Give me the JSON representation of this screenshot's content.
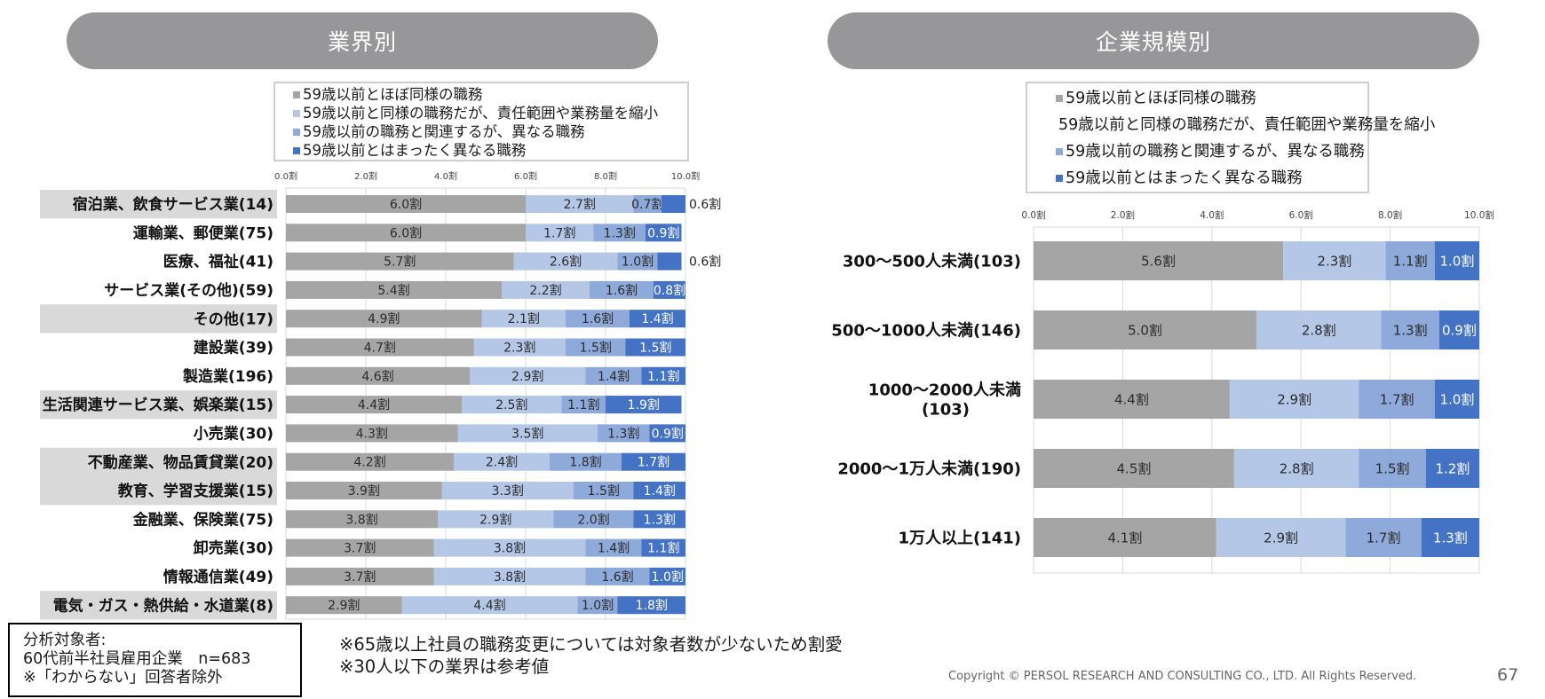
{
  "left_panel": {
    "title": "業界別"
  },
  "right_panel": {
    "title": "企業規模別"
  },
  "legend": [
    {
      "label": "59歳以前とほぼ同様の職務",
      "color": "#a5a5a5"
    },
    {
      "label": "59歳以前と同様の職務だが、責任範囲や業務量を縮小",
      "color": "#b4c7e7"
    },
    {
      "label": "59歳以前の職務と関連するが、異なる職務",
      "color": "#8eaadb"
    },
    {
      "label": "59歳以前とはまったく異なる職務",
      "color": "#4472c4"
    }
  ],
  "chart_data": [
    {
      "type": "bar",
      "orientation": "horizontal-stacked",
      "title": "業界別",
      "xlim": [
        0,
        10
      ],
      "xticks": [
        "0.0割",
        "2.0割",
        "4.0割",
        "6.0割",
        "8.0割",
        "10.0割"
      ],
      "unit": "割",
      "grid": true,
      "legend_position": "top",
      "categories": [
        "宿泊業、飲食サービス業(14)",
        "運輸業、郵便業(75)",
        "医療、福祉(41)",
        "サービス業(その他)(59)",
        "その他(17)",
        "建設業(39)",
        "製造業(196)",
        "生活関連サービス業、娯楽業(15)",
        "小売業(30)",
        "不動産業、物品賃貸業(20)",
        "教育、学習支援業(15)",
        "金融業、保険業(75)",
        "卸売業(30)",
        "情報通信業(49)",
        "電気・ガス・熱供給・水道業(8)"
      ],
      "highlighted": [
        true,
        false,
        false,
        false,
        true,
        false,
        false,
        true,
        false,
        true,
        true,
        false,
        false,
        false,
        true
      ],
      "series": [
        {
          "name": "59歳以前とほぼ同様の職務",
          "values": [
            6.0,
            6.0,
            5.7,
            5.4,
            4.9,
            4.7,
            4.6,
            4.4,
            4.3,
            4.2,
            3.9,
            3.8,
            3.7,
            3.7,
            2.9
          ]
        },
        {
          "name": "59歳以前と同様の職務だが、責任範囲や業務量を縮小",
          "values": [
            2.7,
            1.7,
            2.6,
            2.2,
            2.1,
            2.3,
            2.9,
            2.5,
            3.5,
            2.4,
            3.3,
            2.9,
            3.8,
            3.8,
            4.4
          ]
        },
        {
          "name": "59歳以前の職務と関連するが、異なる職務",
          "values": [
            0.7,
            1.3,
            1.0,
            1.6,
            1.6,
            1.5,
            1.4,
            1.1,
            1.3,
            1.8,
            1.5,
            2.0,
            1.4,
            1.6,
            1.0
          ]
        },
        {
          "name": "59歳以前とはまったく異なる職務",
          "values": [
            0.6,
            0.9,
            0.6,
            0.8,
            1.4,
            1.5,
            1.1,
            1.9,
            0.9,
            1.7,
            1.4,
            1.3,
            1.1,
            1.0,
            1.8
          ]
        }
      ],
      "outside_labels": [
        [
          0,
          3
        ],
        [
          2,
          3
        ]
      ]
    },
    {
      "type": "bar",
      "orientation": "horizontal-stacked",
      "title": "企業規模別",
      "xlim": [
        0,
        10
      ],
      "xticks": [
        "0.0割",
        "2.0割",
        "4.0割",
        "6.0割",
        "8.0割",
        "10.0割"
      ],
      "unit": "割",
      "grid": true,
      "legend_position": "top",
      "categories": [
        "300～500人未満(103)",
        "500～1000人未満(146)",
        "1000～2000人未満\n(103)",
        "2000～1万人未満(190)",
        "1万人以上(141)"
      ],
      "series": [
        {
          "name": "59歳以前とほぼ同様の職務",
          "values": [
            5.6,
            5.0,
            4.4,
            4.5,
            4.1
          ]
        },
        {
          "name": "59歳以前と同様の職務だが、責任範囲や業務量を縮小",
          "values": [
            2.3,
            2.8,
            2.9,
            2.8,
            2.9
          ]
        },
        {
          "name": "59歳以前の職務と関連するが、異なる職務",
          "values": [
            1.1,
            1.3,
            1.7,
            1.5,
            1.7
          ]
        },
        {
          "name": "59歳以前とはまったく異なる職務",
          "values": [
            1.0,
            0.9,
            1.0,
            1.2,
            1.3
          ]
        }
      ]
    }
  ],
  "analysis_box": {
    "line1": "分析対象者:",
    "line2": "60代前半社員雇用企業　n=683",
    "line3": "※「わからない」回答者除外"
  },
  "notes": [
    "※65歳以上社員の職務変更については対象者数が少ないため割愛",
    "※30人以下の業界は参考値"
  ],
  "footer": {
    "copyright": "Copyright © PERSOL RESEARCH AND CONSULTING CO., LTD. All Rights Reserved.",
    "page_number": "67"
  }
}
